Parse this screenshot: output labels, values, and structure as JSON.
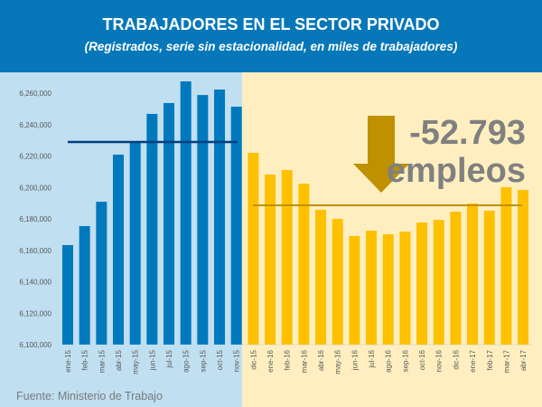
{
  "header": {
    "title": "TRABAJADORES EN EL SECTOR PRIVADO",
    "subtitle": "(Registrados, serie sin estacionalidad, en miles de trabajadores)"
  },
  "annotation": {
    "value": "-52.793",
    "unit": "empleos",
    "arrow_icon": "down-arrow-icon"
  },
  "source": "Fuente: Ministerio de Trabajo",
  "colors": {
    "header": "#0677B8",
    "period1_bar": "#0079BD",
    "period2_bar": "#FFC000",
    "period1_bg": "#C0DFF1",
    "period2_bg": "#FFEFC0",
    "period1_avg": "#003F80",
    "period2_avg": "#BF9000",
    "arrow": "#BF9000"
  },
  "chart_data": {
    "type": "bar",
    "ylim": [
      6100000,
      6270000
    ],
    "yticks": [
      "6,100,000",
      "6,120,000",
      "6,140,000",
      "6,160,000",
      "6,180,000",
      "6,200,000",
      "6,220,000",
      "6,240,000",
      "6,260,000"
    ],
    "ytick_values": [
      6100000,
      6120000,
      6140000,
      6160000,
      6180000,
      6200000,
      6220000,
      6240000,
      6260000
    ],
    "grid": false,
    "categories": [
      "ene-15",
      "feb-15",
      "mar-15",
      "abr-15",
      "may-15",
      "jun-15",
      "jul-15",
      "ago-15",
      "sep-15",
      "oct-15",
      "nov-15",
      "dic-15",
      "ene-16",
      "feb-16",
      "mar-16",
      "abr-16",
      "may-16",
      "jun-16",
      "jul-16",
      "ago-16",
      "sep-16",
      "oct-16",
      "nov-16",
      "dic-16",
      "ene-17",
      "feb-17",
      "mar-17",
      "abr-17"
    ],
    "values": [
      6163300,
      6175400,
      6190900,
      6220900,
      6228700,
      6246800,
      6253700,
      6267500,
      6258800,
      6262300,
      6251400,
      6222000,
      6208200,
      6211100,
      6202400,
      6185800,
      6180000,
      6169100,
      6172500,
      6170200,
      6171900,
      6177700,
      6179400,
      6184600,
      6189800,
      6185200,
      6200100,
      6198400
    ],
    "periods": [
      {
        "from": 0,
        "to": 10,
        "average": 6228900
      },
      {
        "from": 11,
        "to": 27,
        "average": 6188600
      }
    ]
  }
}
